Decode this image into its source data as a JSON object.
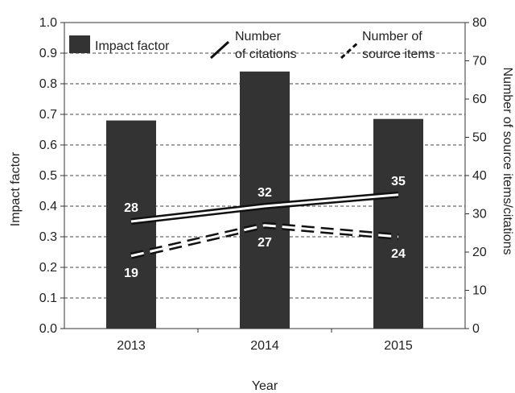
{
  "chart_data": {
    "type": "bar",
    "categories": [
      "2013",
      "2014",
      "2015"
    ],
    "xlabel": "Year",
    "ylabel_left": "Impact factor",
    "ylabel_right": "Number of source items/citations",
    "ylim_left": [
      0,
      1.0
    ],
    "ylim_right": [
      0,
      80
    ],
    "yticks_left": [
      "0.0",
      "0.1",
      "0.2",
      "0.3",
      "0.4",
      "0.5",
      "0.6",
      "0.7",
      "0.8",
      "0.9",
      "1.0"
    ],
    "yticks_right": [
      "0",
      "10",
      "20",
      "30",
      "40",
      "50",
      "60",
      "70",
      "80"
    ],
    "grid": "horizontal dashed",
    "legend_position": "top",
    "bar_color": "#333333",
    "series": [
      {
        "name": "Impact factor",
        "kind": "bar",
        "axis": "left",
        "values": [
          0.68,
          0.84,
          0.685
        ]
      },
      {
        "name": "Number of citations",
        "kind": "line",
        "style": "solid",
        "axis": "right",
        "values": [
          28,
          32,
          35
        ],
        "labels": [
          "28",
          "32",
          "35"
        ]
      },
      {
        "name": "Number of source items",
        "kind": "line",
        "style": "dashed",
        "axis": "right",
        "values": [
          19,
          27,
          24
        ],
        "labels": [
          "19",
          "27",
          "24"
        ]
      }
    ],
    "legend": {
      "bar_label": "Impact factor",
      "citations_label_line1": "Number",
      "citations_label_line2": "of citations",
      "items_label_line1": "Number of",
      "items_label_line2": "source items"
    }
  }
}
